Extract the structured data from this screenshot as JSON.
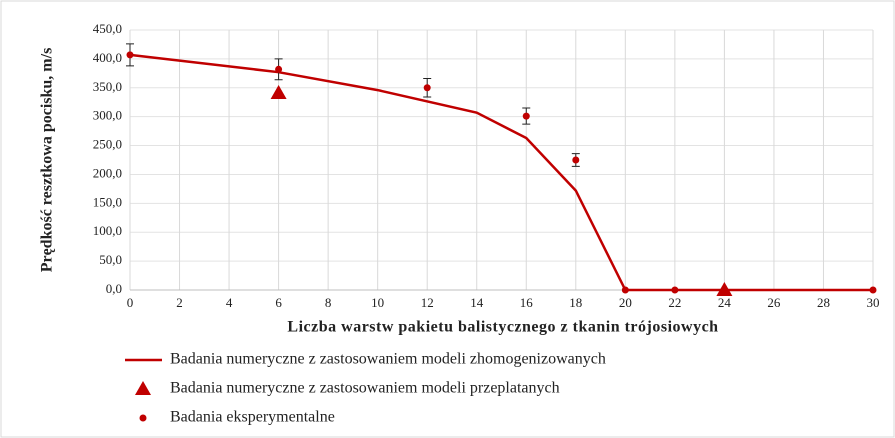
{
  "chart_data": {
    "type": "line",
    "x_label": "Liczba warstw pakietu balistycznego z tkanin trójosiowych",
    "y_label": "Prędkość resztkowa pocisku, m/s",
    "xlim": [
      0,
      30
    ],
    "xticks": [
      0,
      2,
      4,
      6,
      8,
      10,
      12,
      14,
      16,
      18,
      20,
      22,
      24,
      26,
      28,
      30
    ],
    "ylim": [
      0,
      450
    ],
    "yticks": [
      {
        "value": 0,
        "label": "0,0"
      },
      {
        "value": 50,
        "label": "50,0"
      },
      {
        "value": 100,
        "label": "100,0"
      },
      {
        "value": 150,
        "label": "150,0"
      },
      {
        "value": 200,
        "label": "200,0"
      },
      {
        "value": 250,
        "label": "250,0"
      },
      {
        "value": 300,
        "label": "300,0"
      },
      {
        "value": 350,
        "label": "350,0"
      },
      {
        "value": 400,
        "label": "400,0"
      },
      {
        "value": 450,
        "label": "450,0"
      }
    ],
    "grid": true,
    "series": [
      {
        "name": "Badania numeryczne z zastosowaniem modeli zhomogenizowanych",
        "color": "#c00000",
        "type": "line",
        "x": [
          0,
          6,
          10,
          14,
          16,
          18,
          20,
          22,
          24,
          30
        ],
        "values": [
          407,
          377,
          346,
          307,
          263,
          172,
          0,
          0,
          0,
          0
        ]
      },
      {
        "name": "Badania numeryczne z zastosowaniem modeli przeplatanych",
        "color": "#c00000",
        "type": "scatter",
        "marker": "triangle",
        "x": [
          6,
          24
        ],
        "values": [
          341,
          0
        ]
      },
      {
        "name": "Badania eksperymentalne",
        "color": "#c00000",
        "type": "scatter",
        "marker": "circle",
        "x": [
          0,
          6,
          12,
          16,
          18,
          20,
          22,
          30
        ],
        "values": [
          407,
          382,
          350,
          301,
          225,
          0,
          0,
          0
        ],
        "errors": [
          19,
          18,
          16,
          14,
          11,
          0,
          0,
          0
        ]
      }
    ]
  }
}
